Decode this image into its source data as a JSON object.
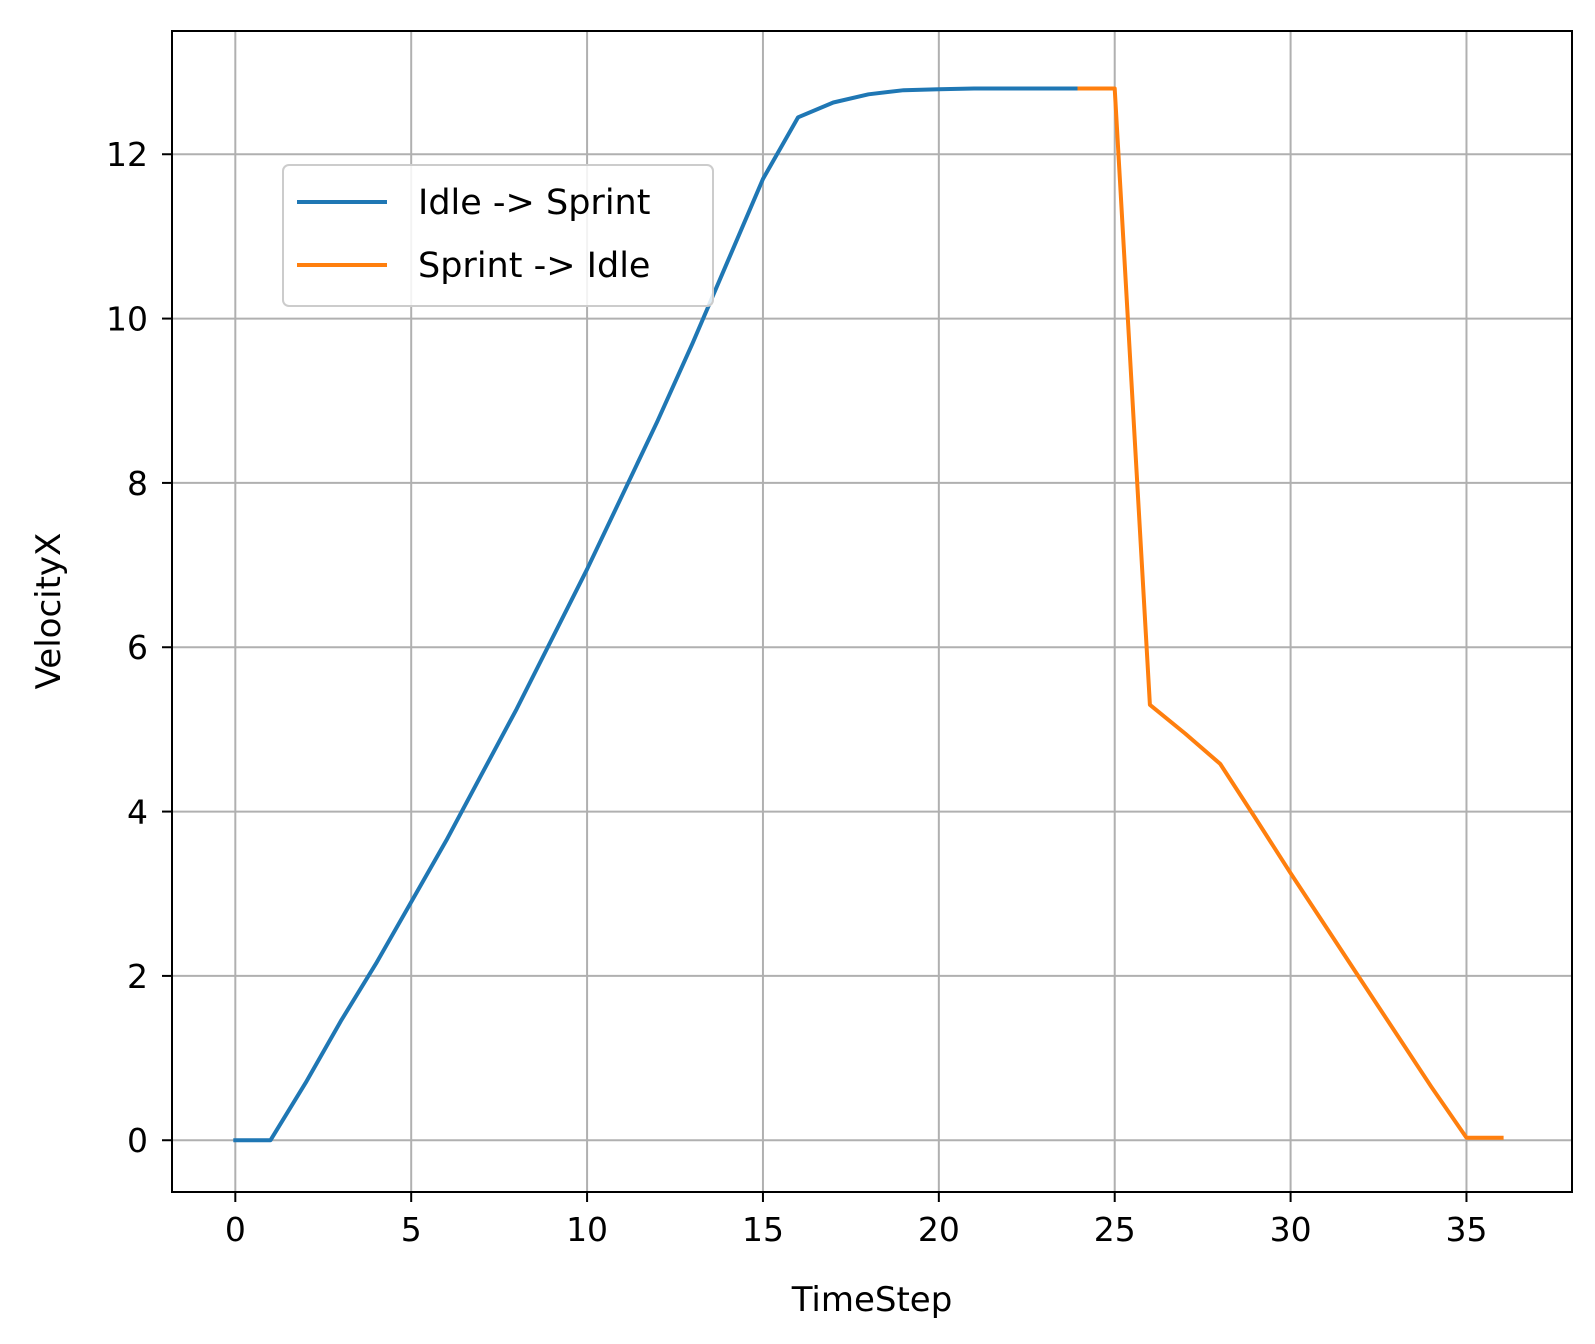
{
  "chart_data": {
    "type": "line",
    "title": "",
    "xlabel": "TimeStep",
    "ylabel": "VelocityX",
    "xlim": [
      -1.8,
      38
    ],
    "ylim": [
      -0.63,
      13.5
    ],
    "xticks": [
      0,
      5,
      10,
      15,
      20,
      25,
      30,
      35
    ],
    "yticks": [
      0,
      2,
      4,
      6,
      8,
      10,
      12
    ],
    "grid": true,
    "legend_position": "upper-left",
    "series": [
      {
        "name": "Idle -> Sprint",
        "color": "#1f77b4",
        "x": [
          0,
          1,
          2,
          3,
          4,
          5,
          6,
          7,
          8,
          9,
          10,
          11,
          12,
          13,
          14,
          15,
          16,
          17,
          18,
          19,
          20,
          21,
          22,
          23,
          24
        ],
        "y": [
          0,
          0,
          0.7,
          1.45,
          2.15,
          2.9,
          3.65,
          4.45,
          5.25,
          6.1,
          6.95,
          7.85,
          8.75,
          9.7,
          10.7,
          11.7,
          12.45,
          12.63,
          12.73,
          12.78,
          12.79,
          12.8,
          12.8,
          12.8,
          12.8
        ]
      },
      {
        "name": "Sprint -> Idle",
        "color": "#ff7f0e",
        "x": [
          24,
          25,
          26,
          27,
          28,
          29,
          30,
          31,
          32,
          33,
          34,
          35,
          36
        ],
        "y": [
          12.8,
          12.8,
          5.3,
          4.95,
          4.58,
          3.92,
          3.25,
          2.6,
          1.95,
          1.3,
          0.65,
          0.03,
          0.03
        ]
      }
    ]
  }
}
